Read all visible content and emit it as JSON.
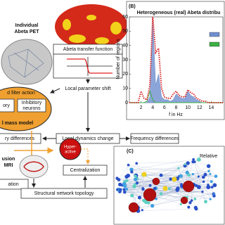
{
  "panel_a": {
    "pet_label": [
      "Individual",
      "Abeta PET"
    ],
    "transfer_function": "Abeta transfer function",
    "local_shift": "Local parameter shift",
    "filter_action": "d filter action",
    "excitatory": "ory",
    "inhibitory": [
      "Inhibitory",
      "neurons"
    ],
    "mass_model": "l mass model",
    "freq_diff_left": "ry differences",
    "dynamics_change": "Local dynamics change",
    "freq_diff": "Frequency differences",
    "diffusion": [
      "usion",
      "MRI"
    ],
    "hyperactive": [
      "Hyper-",
      "active"
    ],
    "centralization": "Centralization",
    "left_box": "ation",
    "topology": "Structural network topology"
  },
  "chart_data": {
    "type": "line",
    "panel_label": "(B)",
    "title": "Heterogeneous (real) Abeta distribu",
    "x_label": "f in Hz",
    "y_label": "Number of regions",
    "x": [
      0,
      0.5,
      1,
      1.5,
      2,
      2.5,
      3,
      3.5,
      4,
      4.5,
      5,
      5.5,
      6,
      6.5,
      7,
      7.5,
      8,
      8.5,
      9,
      9.5,
      10,
      10.5,
      11,
      11.5,
      12,
      12.5,
      13,
      13.5,
      14,
      14.5,
      15,
      15.5,
      16
    ],
    "series": [
      {
        "color": "#6f8fd0",
        "values": [
          0,
          0,
          0,
          0,
          0,
          0,
          0,
          4,
          58,
          12,
          20,
          4,
          2,
          2,
          1,
          2,
          6,
          4,
          3,
          3,
          8,
          5,
          4,
          2,
          1,
          0,
          0,
          0,
          0,
          0,
          0,
          0,
          0
        ]
      },
      {
        "color": "#3cb043",
        "values": [
          0,
          0,
          0,
          0,
          0,
          0,
          1,
          8,
          2,
          0,
          0,
          0,
          0,
          0,
          0,
          0,
          0,
          0,
          0,
          0,
          0,
          0,
          0,
          0,
          0,
          0,
          0,
          0,
          0,
          0,
          0,
          0,
          0
        ]
      },
      {
        "color": "#d62728",
        "values": [
          0,
          0,
          0,
          0,
          8,
          3,
          2,
          12,
          60,
          35,
          38,
          10,
          4,
          3,
          3,
          6,
          8,
          5,
          4,
          4,
          9,
          7,
          6,
          3,
          2,
          1,
          1,
          0,
          0,
          0,
          0,
          0,
          0
        ]
      }
    ],
    "xlim": [
      0,
      16
    ],
    "ylim": [
      0,
      60
    ],
    "xticks": [
      2,
      4,
      6,
      8,
      10,
      12,
      14
    ],
    "yticks": [
      0,
      10,
      20,
      30,
      40,
      50,
      60
    ]
  },
  "panel_c": {
    "label": "(C)",
    "text": "Relative"
  }
}
